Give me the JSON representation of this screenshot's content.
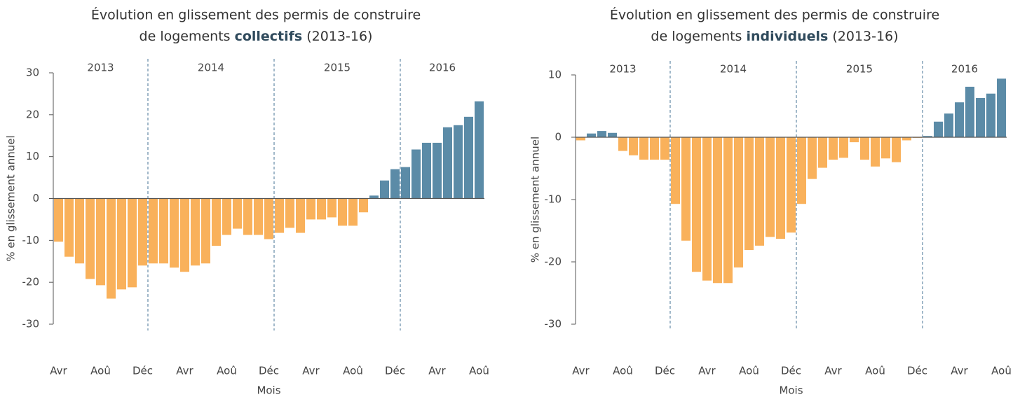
{
  "chart_data": [
    {
      "type": "bar",
      "title": [
        "Évolution en glissement des permis de construire",
        "de logements",
        "collectifs",
        "(2013-16)"
      ],
      "y_label": "% en glissement annuel",
      "x_label": "Mois",
      "year_labels": [
        "2013",
        "2014",
        "2015",
        "2016"
      ],
      "categories": [
        "Avr",
        null,
        null,
        null,
        "Aoû",
        null,
        null,
        null,
        "Déc",
        null,
        null,
        null,
        "Avr",
        null,
        null,
        null,
        "Aoû",
        null,
        null,
        null,
        "Déc",
        null,
        null,
        null,
        "Avr",
        null,
        null,
        null,
        "Aoû",
        null,
        null,
        null,
        "Déc",
        null,
        null,
        null,
        "Avr",
        null,
        null,
        null,
        "Aoû"
      ],
      "values": [
        -10.3,
        -13.9,
        -15.5,
        -19.2,
        -20.7,
        -23.9,
        -21.7,
        -21.2,
        -16.0,
        -15.5,
        -15.5,
        -16.5,
        -17.5,
        -16.0,
        -15.5,
        -11.3,
        -8.7,
        -7.2,
        -8.7,
        -8.7,
        -9.7,
        -8.2,
        -7.0,
        -8.2,
        -5.0,
        -5.0,
        -4.5,
        -6.5,
        -6.5,
        -3.3,
        0.7,
        4.3,
        7.0,
        7.5,
        11.7,
        13.3,
        13.3,
        17.0,
        17.5,
        19.5,
        23.2
      ],
      "positive_color": "#5b8ba7",
      "negative_color": "#f9b15b",
      "ylim": [
        -30,
        30
      ],
      "yticks": [
        -30,
        -20,
        -10,
        0,
        10,
        20,
        30
      ]
    },
    {
      "type": "bar",
      "title": [
        "Évolution en glissement des permis de construire",
        "de logements",
        "individuels",
        "(2013-16)"
      ],
      "y_label": "% en glissement annuel",
      "x_label": "Mois",
      "year_labels": [
        "2013",
        "2014",
        "2015",
        "2016"
      ],
      "categories": [
        "Avr",
        null,
        null,
        null,
        "Aoû",
        null,
        null,
        null,
        "Déc",
        null,
        null,
        null,
        "Avr",
        null,
        null,
        null,
        "Aoû",
        null,
        null,
        null,
        "Déc",
        null,
        null,
        null,
        "Avr",
        null,
        null,
        null,
        "Aoû",
        null,
        null,
        null,
        "Déc",
        null,
        null,
        null,
        "Avr",
        null,
        null,
        null,
        "Aoû"
      ],
      "values": [
        -0.5,
        0.6,
        1.0,
        0.7,
        -2.2,
        -2.9,
        -3.6,
        -3.6,
        -3.6,
        -10.7,
        -16.6,
        -21.6,
        -23.0,
        -23.4,
        -23.4,
        -20.9,
        -18.1,
        -17.4,
        -16.0,
        -16.3,
        -15.3,
        -10.7,
        -6.7,
        -4.9,
        -3.6,
        -3.3,
        -0.8,
        -3.6,
        -4.7,
        -3.4,
        -4.0,
        -0.5,
        -0.1,
        0.2,
        2.5,
        3.8,
        5.6,
        8.1,
        6.3,
        7.0,
        9.4
      ],
      "positive_color": "#5b8ba7",
      "negative_color": "#f9b15b",
      "ylim": [
        -30,
        10
      ],
      "yticks": [
        -30,
        -20,
        -10,
        0,
        10
      ]
    }
  ]
}
